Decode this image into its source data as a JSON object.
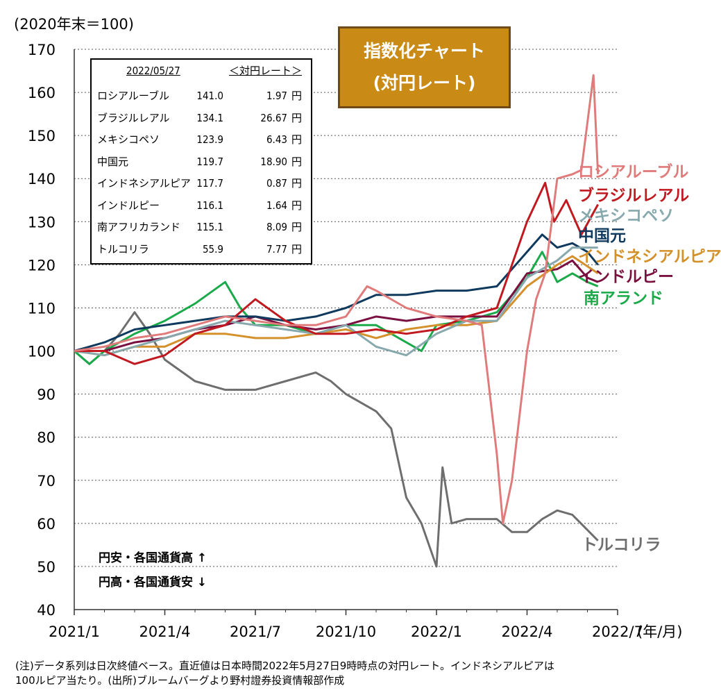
{
  "chart_data": {
    "type": "line",
    "title": "指数化チャート",
    "subtitle": "(対円レート)",
    "ylabel": "(2020年末＝100)",
    "xlabel": "(年/月)",
    "ylim": [
      40,
      170
    ],
    "yticks": [
      40,
      50,
      60,
      70,
      80,
      90,
      100,
      110,
      120,
      130,
      140,
      150,
      160,
      170
    ],
    "xlim": [
      0,
      18
    ],
    "xticks": [
      {
        "x": 0,
        "label": "2021/1"
      },
      {
        "x": 3,
        "label": "2021/4"
      },
      {
        "x": 6,
        "label": "2021/7"
      },
      {
        "x": 9,
        "label": "2021/10"
      },
      {
        "x": 12,
        "label": "2022/1"
      },
      {
        "x": 15,
        "label": "2022/4"
      },
      {
        "x": 18,
        "label": "2022/7"
      }
    ],
    "grid": "horizontal dotted",
    "series": [
      {
        "name": "ロシアルーブル",
        "color": "#e07b7b",
        "points": [
          [
            0,
            100
          ],
          [
            1,
            101
          ],
          [
            2,
            103
          ],
          [
            3,
            104
          ],
          [
            4,
            106
          ],
          [
            5,
            108
          ],
          [
            6,
            107
          ],
          [
            7,
            106
          ],
          [
            8,
            106
          ],
          [
            9,
            108
          ],
          [
            9.7,
            115
          ],
          [
            10,
            114
          ],
          [
            11,
            110
          ],
          [
            12,
            108
          ],
          [
            13,
            107
          ],
          [
            13.5,
            106
          ],
          [
            14,
            76
          ],
          [
            14.2,
            60
          ],
          [
            14.5,
            70
          ],
          [
            14.8,
            88
          ],
          [
            15,
            100
          ],
          [
            15.3,
            112
          ],
          [
            15.6,
            118
          ],
          [
            16,
            140
          ],
          [
            16.5,
            141
          ],
          [
            16.8,
            142
          ],
          [
            17.2,
            164
          ],
          [
            17.35,
            141
          ]
        ]
      },
      {
        "name": "ブラジルレアル",
        "color": "#c0191f",
        "points": [
          [
            0,
            100
          ],
          [
            1,
            100
          ],
          [
            2,
            97
          ],
          [
            3,
            99
          ],
          [
            4,
            104
          ],
          [
            5,
            106
          ],
          [
            6,
            112
          ],
          [
            7,
            107
          ],
          [
            8,
            104
          ],
          [
            9,
            104
          ],
          [
            10,
            105
          ],
          [
            11,
            104
          ],
          [
            12,
            105
          ],
          [
            13,
            108
          ],
          [
            14,
            110
          ],
          [
            15,
            130
          ],
          [
            15.6,
            139
          ],
          [
            15.9,
            130
          ],
          [
            16.3,
            135
          ],
          [
            16.8,
            127
          ],
          [
            17.35,
            134
          ]
        ]
      },
      {
        "name": "メキシコペソ",
        "color": "#87a8ad",
        "points": [
          [
            0,
            100
          ],
          [
            1,
            99
          ],
          [
            2,
            101
          ],
          [
            3,
            103
          ],
          [
            4,
            105
          ],
          [
            5,
            107
          ],
          [
            6,
            106
          ],
          [
            7,
            105
          ],
          [
            8,
            104
          ],
          [
            9,
            106
          ],
          [
            10,
            101
          ],
          [
            11,
            99
          ],
          [
            12,
            104
          ],
          [
            13,
            107
          ],
          [
            14,
            107
          ],
          [
            15,
            117
          ],
          [
            16,
            121
          ],
          [
            16.5,
            124
          ],
          [
            17.35,
            124
          ]
        ]
      },
      {
        "name": "中国元",
        "color": "#0f3a5e",
        "points": [
          [
            0,
            100
          ],
          [
            1,
            102
          ],
          [
            2,
            105
          ],
          [
            3,
            106
          ],
          [
            4,
            107
          ],
          [
            5,
            108
          ],
          [
            6,
            108
          ],
          [
            7,
            107
          ],
          [
            8,
            108
          ],
          [
            9,
            110
          ],
          [
            10,
            113
          ],
          [
            11,
            113
          ],
          [
            12,
            114
          ],
          [
            13,
            114
          ],
          [
            14,
            115
          ],
          [
            15,
            123
          ],
          [
            15.5,
            127
          ],
          [
            16,
            124
          ],
          [
            16.5,
            125
          ],
          [
            17,
            123
          ],
          [
            17.35,
            120
          ]
        ]
      },
      {
        "name": "インドネシアルピア",
        "color": "#d4912b",
        "points": [
          [
            0,
            100
          ],
          [
            1,
            99
          ],
          [
            2,
            101
          ],
          [
            3,
            101
          ],
          [
            4,
            104
          ],
          [
            5,
            104
          ],
          [
            6,
            103
          ],
          [
            7,
            103
          ],
          [
            8,
            104
          ],
          [
            9,
            105
          ],
          [
            10,
            103
          ],
          [
            11,
            105
          ],
          [
            12,
            106
          ],
          [
            13,
            106
          ],
          [
            14,
            107
          ],
          [
            15,
            115
          ],
          [
            16,
            120
          ],
          [
            16.5,
            122
          ],
          [
            17.35,
            118
          ]
        ]
      },
      {
        "name": "インドルピー",
        "color": "#7a1040",
        "points": [
          [
            0,
            100
          ],
          [
            1,
            100
          ],
          [
            2,
            102
          ],
          [
            3,
            103
          ],
          [
            4,
            105
          ],
          [
            5,
            106
          ],
          [
            6,
            108
          ],
          [
            7,
            106
          ],
          [
            8,
            105
          ],
          [
            9,
            106
          ],
          [
            10,
            108
          ],
          [
            11,
            107
          ],
          [
            12,
            108
          ],
          [
            13,
            108
          ],
          [
            14,
            108
          ],
          [
            15,
            118
          ],
          [
            16,
            119
          ],
          [
            16.5,
            121
          ],
          [
            17,
            117
          ],
          [
            17.35,
            116
          ]
        ]
      },
      {
        "name": "南アランド",
        "color": "#1aaa4a",
        "points": [
          [
            0,
            100
          ],
          [
            0.5,
            97
          ],
          [
            1,
            100
          ],
          [
            2,
            104
          ],
          [
            3,
            107
          ],
          [
            4,
            111
          ],
          [
            5,
            116
          ],
          [
            5.5,
            110
          ],
          [
            6,
            106
          ],
          [
            7,
            106
          ],
          [
            8,
            104
          ],
          [
            9,
            106
          ],
          [
            10,
            106
          ],
          [
            11,
            102
          ],
          [
            11.5,
            100
          ],
          [
            12,
            106
          ],
          [
            13,
            107
          ],
          [
            14,
            109
          ],
          [
            15,
            117
          ],
          [
            15.5,
            123
          ],
          [
            16,
            116
          ],
          [
            16.5,
            118
          ],
          [
            17,
            116
          ],
          [
            17.35,
            115
          ]
        ]
      },
      {
        "name": "トルコリラ",
        "color": "#6e6e6e",
        "points": [
          [
            0,
            100
          ],
          [
            0.5,
            97
          ],
          [
            1,
            100
          ],
          [
            1.5,
            104
          ],
          [
            2,
            109
          ],
          [
            2.5,
            104
          ],
          [
            3,
            98
          ],
          [
            4,
            93
          ],
          [
            5,
            91
          ],
          [
            6,
            91
          ],
          [
            7,
            93
          ],
          [
            8,
            95
          ],
          [
            8.5,
            93
          ],
          [
            9,
            90
          ],
          [
            10,
            86
          ],
          [
            10.5,
            82
          ],
          [
            11,
            66
          ],
          [
            11.5,
            60
          ],
          [
            12,
            50
          ],
          [
            12.2,
            73
          ],
          [
            12.5,
            60
          ],
          [
            13,
            61
          ],
          [
            14,
            61
          ],
          [
            14.5,
            58
          ],
          [
            15,
            58
          ],
          [
            15.5,
            61
          ],
          [
            16,
            63
          ],
          [
            16.5,
            62
          ],
          [
            17.35,
            56
          ]
        ]
      }
    ]
  },
  "legend_labels": [
    {
      "name": "ロシアルーブル",
      "color": "#e07b7b"
    },
    {
      "name": "ブラジルレアル",
      "color": "#c0191f"
    },
    {
      "name": "メキシコペソ",
      "color": "#87a8ad"
    },
    {
      "name": "中国元",
      "color": "#0f3a5e"
    },
    {
      "name": "インドネシアルピア",
      "color": "#d4912b"
    },
    {
      "name": "インドルピー",
      "color": "#7a1040"
    },
    {
      "name": "南アランド",
      "color": "#1aaa4a"
    },
    {
      "name": "トルコリラ",
      "color": "#6e6e6e"
    }
  ],
  "title_box": {
    "line1": "指数化チャート",
    "line2": "(対円レート)"
  },
  "table": {
    "date": "2022/05/27",
    "rate_header": "＜対円レート＞",
    "unit": "円",
    "rows": [
      {
        "name": "ロシアルーブル",
        "index": "141.0",
        "rate": "1.97"
      },
      {
        "name": "ブラジルレアル",
        "index": "134.1",
        "rate": "26.67"
      },
      {
        "name": "メキシコペソ",
        "index": "123.9",
        "rate": "6.43"
      },
      {
        "name": "中国元",
        "index": "119.7",
        "rate": "18.90"
      },
      {
        "name": "インドネシアルピア",
        "index": "117.7",
        "rate": "0.87"
      },
      {
        "name": "インドルピー",
        "index": "116.1",
        "rate": "1.64"
      },
      {
        "name": "南アフリカランド",
        "index": "115.1",
        "rate": "8.09"
      },
      {
        "name": "トルコリラ",
        "index": "55.9",
        "rate": "7.77"
      }
    ]
  },
  "annotations": {
    "up": "円安・各国通貨高 ↑",
    "down": "円高・各国通貨安 ↓"
  },
  "footnote": {
    "line1": "(注)データ系列は日次終値ベース。直近値は日本時間2022年5月27日9時時点の対円レート。インドネシアルピアは",
    "line2": "100ルピア当たり。(出所)ブルームバーグより野村證券投資情報部作成"
  }
}
